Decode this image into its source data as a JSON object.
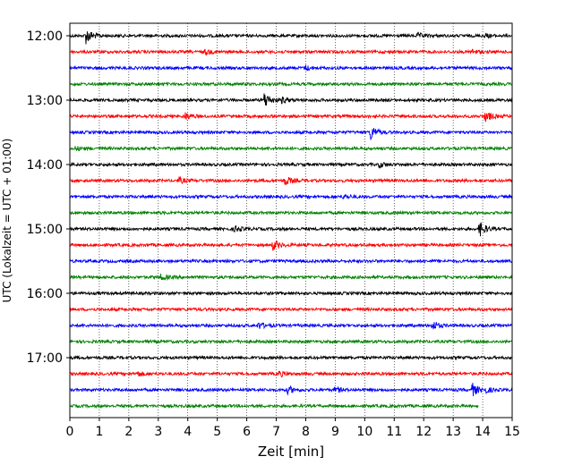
{
  "chart_data": {
    "type": "line",
    "title": "",
    "xlabel": "Zeit  [min]",
    "ylabel": "UTC (Lokalzeit = UTC + 01:00)",
    "xlim": [
      0,
      15
    ],
    "x_ticks": [
      "0",
      "1",
      "2",
      "3",
      "4",
      "5",
      "6",
      "7",
      "8",
      "9",
      "10",
      "11",
      "12",
      "13",
      "14",
      "15"
    ],
    "y_ticks": [
      "12:00",
      "13:00",
      "14:00",
      "15:00",
      "16:00",
      "17:00"
    ],
    "grid": "vertical dotted",
    "trace_colors": [
      "#000000",
      "#ff0000",
      "#0000ff",
      "#008000"
    ],
    "traces": [
      {
        "start": "12:00",
        "color": "#000000",
        "events": [
          [
            0.55,
            9
          ],
          [
            11.8,
            2.5
          ],
          [
            14.1,
            2
          ]
        ]
      },
      {
        "start": "12:15",
        "color": "#ff0000",
        "events": [
          [
            4.6,
            2.5
          ],
          [
            13.6,
            2.5
          ]
        ]
      },
      {
        "start": "12:30",
        "color": "#0000ff",
        "events": [
          [
            8.0,
            2.5
          ]
        ]
      },
      {
        "start": "12:45",
        "color": "#008000",
        "events": []
      },
      {
        "start": "13:00",
        "color": "#000000",
        "events": [
          [
            6.6,
            9
          ],
          [
            7.2,
            3
          ]
        ]
      },
      {
        "start": "13:15",
        "color": "#ff0000",
        "events": [
          [
            3.9,
            4
          ],
          [
            14.1,
            6
          ]
        ]
      },
      {
        "start": "13:30",
        "color": "#0000ff",
        "events": [
          [
            10.2,
            8
          ]
        ]
      },
      {
        "start": "13:45",
        "color": "#008000",
        "events": [
          [
            0.2,
            2
          ]
        ]
      },
      {
        "start": "14:00",
        "color": "#000000",
        "events": [
          [
            10.5,
            3
          ]
        ]
      },
      {
        "start": "14:15",
        "color": "#ff0000",
        "events": [
          [
            3.7,
            3
          ],
          [
            7.3,
            5
          ]
        ]
      },
      {
        "start": "14:30",
        "color": "#0000ff",
        "events": [
          [
            9.3,
            2.5
          ]
        ]
      },
      {
        "start": "14:45",
        "color": "#008000",
        "events": []
      },
      {
        "start": "15:00",
        "color": "#000000",
        "events": [
          [
            5.6,
            3
          ],
          [
            13.9,
            8
          ]
        ]
      },
      {
        "start": "15:15",
        "color": "#ff0000",
        "events": [
          [
            6.9,
            6
          ]
        ]
      },
      {
        "start": "15:30",
        "color": "#0000ff",
        "events": []
      },
      {
        "start": "15:45",
        "color": "#008000",
        "events": [
          [
            3.1,
            3.5
          ]
        ]
      },
      {
        "start": "16:00",
        "color": "#000000",
        "events": []
      },
      {
        "start": "16:15",
        "color": "#ff0000",
        "events": []
      },
      {
        "start": "16:30",
        "color": "#0000ff",
        "events": [
          [
            6.4,
            3.5
          ],
          [
            12.3,
            5
          ]
        ]
      },
      {
        "start": "16:45",
        "color": "#008000",
        "events": []
      },
      {
        "start": "17:00",
        "color": "#000000",
        "events": []
      },
      {
        "start": "17:15",
        "color": "#ff0000",
        "events": [
          [
            2.3,
            2.5
          ],
          [
            7.1,
            3
          ]
        ]
      },
      {
        "start": "17:30",
        "color": "#0000ff",
        "events": [
          [
            7.4,
            4
          ],
          [
            9.0,
            3
          ],
          [
            13.65,
            7
          ],
          [
            14.1,
            2.5
          ]
        ]
      },
      {
        "start": "17:45",
        "color": "#008000",
        "events": [],
        "end": 13.85
      }
    ]
  }
}
